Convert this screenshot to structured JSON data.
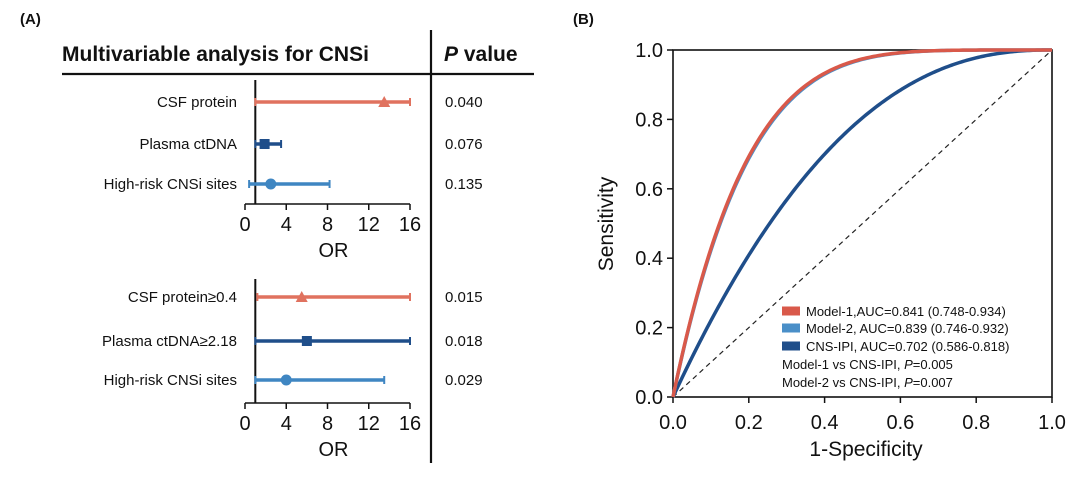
{
  "chart_data": [
    {
      "type": "forest",
      "panel_label": "(A)",
      "title": "Multivariable analysis for CNSi",
      "pvalue_header": {
        "p": "P",
        "rest": " value"
      },
      "groups": [
        {
          "xlabel": "OR",
          "xlim": [
            0,
            16
          ],
          "xticks": [
            0,
            4,
            8,
            12,
            16
          ],
          "reference_line": 1,
          "rows": [
            {
              "label": "CSF protein",
              "or": 13.5,
              "ci": [
                1.0,
                16.0
              ],
              "p": "0.040",
              "color": "#e0725f",
              "marker": "triangle"
            },
            {
              "label": "Plasma ctDNA",
              "or": 1.9,
              "ci": [
                1.0,
                3.5
              ],
              "p": "0.076",
              "color": "#1f4e8a",
              "marker": "square"
            },
            {
              "label": "High-risk CNSi sites",
              "or": 2.5,
              "ci": [
                0.4,
                8.2
              ],
              "p": "0.135",
              "color": "#3f86c2",
              "marker": "circle"
            }
          ]
        },
        {
          "xlabel": "OR",
          "xlim": [
            0,
            16
          ],
          "xticks": [
            0,
            4,
            8,
            12,
            16
          ],
          "reference_line": 1,
          "rows": [
            {
              "label": "CSF protein≥0.4",
              "or": 5.5,
              "ci": [
                1.2,
                16.0
              ],
              "p": "0.015",
              "color": "#e0725f",
              "marker": "triangle"
            },
            {
              "label": "Plasma ctDNA≥2.18",
              "or": 6.0,
              "ci": [
                1.0,
                16.0
              ],
              "p": "0.018",
              "color": "#1f4e8a",
              "marker": "square"
            },
            {
              "label": "High-risk CNSi sites",
              "or": 4.0,
              "ci": [
                1.0,
                13.5
              ],
              "p": "0.029",
              "color": "#3f86c2",
              "marker": "circle"
            }
          ]
        }
      ]
    },
    {
      "type": "line",
      "panel_label": "(B)",
      "xlabel": "1-Specificity",
      "ylabel": "Sensitivity",
      "xlim": [
        0,
        1
      ],
      "ylim": [
        0,
        1
      ],
      "xticks": [
        "0.0",
        "0.2",
        "0.4",
        "0.6",
        "0.8",
        "1.0"
      ],
      "yticks": [
        "0.0",
        "0.2",
        "0.4",
        "0.6",
        "0.8",
        "1.0"
      ],
      "reference_diagonal": true,
      "series": [
        {
          "name": "Model-1,AUC=0.841 (0.748-0.934)",
          "auc": 0.841,
          "color": "#d9594a"
        },
        {
          "name": "Model-2, AUC=0.839 (0.746-0.932)",
          "auc": 0.839,
          "color": "#4a8fc8"
        },
        {
          "name": "CNS-IPI, AUC=0.702 (0.586-0.818)",
          "auc": 0.702,
          "color": "#1f4e8a"
        }
      ],
      "annotations": [
        {
          "pre": "Model-1 vs CNS-IPI, ",
          "p": "P",
          "post": "=0.005"
        },
        {
          "pre": "Model-2 vs CNS-IPI, ",
          "p": "P",
          "post": "=0.007"
        }
      ]
    }
  ]
}
